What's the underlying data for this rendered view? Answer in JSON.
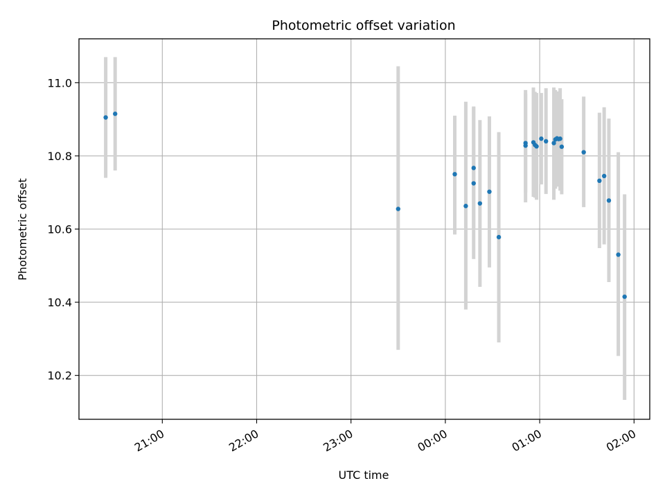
{
  "chart_data": {
    "type": "scatter",
    "title": "Photometric offset variation",
    "xlabel": "UTC time",
    "ylabel": "Photometric offset",
    "x_axis_kind": "time",
    "xlim": [
      "20:07",
      "02:10"
    ],
    "ylim": [
      10.08,
      11.12
    ],
    "x_ticks": [
      "21:00",
      "22:00",
      "23:00",
      "00:00",
      "01:00",
      "02:00"
    ],
    "y_ticks": [
      "10.2",
      "10.4",
      "10.6",
      "10.8",
      "11.0"
    ],
    "grid": true,
    "marker_color": "#1f77b4",
    "errorbar_color": "#d3d3d3",
    "points": [
      {
        "x": "20:24",
        "y": 10.905,
        "yerr_low": 10.74,
        "yerr_high": 11.07
      },
      {
        "x": "20:30",
        "y": 10.915,
        "yerr_low": 10.76,
        "yerr_high": 11.07
      },
      {
        "x": "23:30",
        "y": 10.655,
        "yerr_low": 10.27,
        "yerr_high": 11.045
      },
      {
        "x": "00:06",
        "y": 10.75,
        "yerr_low": 10.585,
        "yerr_high": 10.91
      },
      {
        "x": "00:13",
        "y": 10.663,
        "yerr_low": 10.38,
        "yerr_high": 10.948
      },
      {
        "x": "00:18",
        "y": 10.725,
        "yerr_low": 10.518,
        "yerr_high": 10.933
      },
      {
        "x": "00:18",
        "y": 10.767,
        "yerr_low": 10.6,
        "yerr_high": 10.935
      },
      {
        "x": "00:22",
        "y": 10.67,
        "yerr_low": 10.442,
        "yerr_high": 10.898
      },
      {
        "x": "00:28",
        "y": 10.702,
        "yerr_low": 10.495,
        "yerr_high": 10.908
      },
      {
        "x": "00:34",
        "y": 10.578,
        "yerr_low": 10.29,
        "yerr_high": 10.865
      },
      {
        "x": "00:51",
        "y": 10.828,
        "yerr_low": 10.673,
        "yerr_high": 10.98
      },
      {
        "x": "00:51",
        "y": 10.835,
        "yerr_low": 10.7,
        "yerr_high": 10.97
      },
      {
        "x": "00:56",
        "y": 10.837,
        "yerr_low": 10.688,
        "yerr_high": 10.987
      },
      {
        "x": "00:57",
        "y": 10.83,
        "yerr_low": 10.686,
        "yerr_high": 10.975
      },
      {
        "x": "00:58",
        "y": 10.826,
        "yerr_low": 10.68,
        "yerr_high": 10.972
      },
      {
        "x": "01:01",
        "y": 10.847,
        "yerr_low": 10.722,
        "yerr_high": 10.972
      },
      {
        "x": "01:04",
        "y": 10.84,
        "yerr_low": 10.696,
        "yerr_high": 10.985
      },
      {
        "x": "01:09",
        "y": 10.835,
        "yerr_low": 10.68,
        "yerr_high": 10.987
      },
      {
        "x": "01:10",
        "y": 10.845,
        "yerr_low": 10.71,
        "yerr_high": 10.98
      },
      {
        "x": "01:11",
        "y": 10.848,
        "yerr_low": 10.72,
        "yerr_high": 10.975
      },
      {
        "x": "01:12",
        "y": 10.846,
        "yerr_low": 10.716,
        "yerr_high": 10.976
      },
      {
        "x": "01:13",
        "y": 10.847,
        "yerr_low": 10.705,
        "yerr_high": 10.985
      },
      {
        "x": "01:14",
        "y": 10.825,
        "yerr_low": 10.695,
        "yerr_high": 10.955
      },
      {
        "x": "01:28",
        "y": 10.81,
        "yerr_low": 10.66,
        "yerr_high": 10.962
      },
      {
        "x": "01:38",
        "y": 10.732,
        "yerr_low": 10.548,
        "yerr_high": 10.918
      },
      {
        "x": "01:41",
        "y": 10.745,
        "yerr_low": 10.558,
        "yerr_high": 10.933
      },
      {
        "x": "01:44",
        "y": 10.678,
        "yerr_low": 10.455,
        "yerr_high": 10.902
      },
      {
        "x": "01:50",
        "y": 10.53,
        "yerr_low": 10.253,
        "yerr_high": 10.81
      },
      {
        "x": "01:54",
        "y": 10.415,
        "yerr_low": 10.133,
        "yerr_high": 10.695
      }
    ]
  }
}
